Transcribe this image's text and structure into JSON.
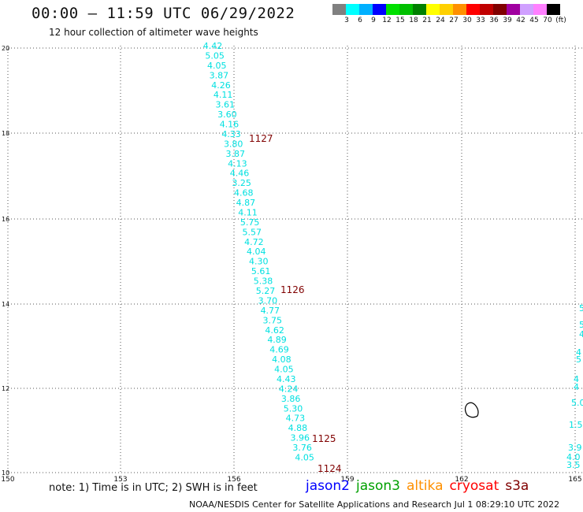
{
  "header": {
    "title": "00:00 – 11:59 UTC 06/29/2022",
    "subtitle": "12 hour collection of altimeter wave heights"
  },
  "colorbar": {
    "colors": [
      "#808080",
      "#00ffff",
      "#00b0ff",
      "#0000ff",
      "#00e000",
      "#00c000",
      "#008000",
      "#ffff00",
      "#ffd000",
      "#ff9000",
      "#ff0000",
      "#c00000",
      "#800000",
      "#a000a0",
      "#d0a0ff",
      "#ff80ff",
      "#000000"
    ],
    "labels": [
      "3",
      "6",
      "9",
      "12",
      "15",
      "18",
      "21",
      "24",
      "27",
      "30",
      "33",
      "36",
      "39",
      "42",
      "45",
      "70",
      "(ft)"
    ]
  },
  "axes": {
    "lat_labels": [
      "20",
      "18",
      "16",
      "14",
      "12",
      "10"
    ],
    "lon_labels": [
      "150",
      "153",
      "156",
      "159",
      "162",
      "165"
    ]
  },
  "track": {
    "color": "#00e0e0",
    "values": [
      "4.42",
      "5.05",
      "4.05",
      "3.87",
      "4.26",
      "4.11",
      "3.61",
      "3.60",
      "4.16",
      "4.33",
      "3.80",
      "3.87",
      "4.13",
      "4.46",
      "3.25",
      "4.68",
      "4.87",
      "4.11",
      "5.75",
      "5.57",
      "4.72",
      "4.04",
      "4.30",
      "5.61",
      "5.38",
      "5.27",
      "3.70",
      "4.77",
      "3.75",
      "4.62",
      "4.89",
      "4.69",
      "4.08",
      "4.05",
      "4.43",
      "4.24",
      "3.86",
      "5.30",
      "4.73",
      "4.88",
      "3.96",
      "3.76",
      "4.05"
    ]
  },
  "time_labels": [
    "1127",
    "1126",
    "1125",
    "1124"
  ],
  "edge_values": [
    "5",
    "5",
    "4",
    "4",
    "5",
    "4",
    "4",
    "5.0",
    "1.5",
    "3.9",
    "4.0",
    "3.5"
  ],
  "note": "note: 1) Time is in UTC; 2) SWH is in feet",
  "satellites": [
    {
      "name": "jason2",
      "color": "#0000ff"
    },
    {
      "name": "jason3",
      "color": "#00a000"
    },
    {
      "name": "altika",
      "color": "#ff9000"
    },
    {
      "name": "cryosat",
      "color": "#ff0000"
    },
    {
      "name": "s3a",
      "color": "#800000"
    }
  ],
  "footer": "NOAA/NESDIS Center for Satellite Applications and Research    Jul  1 08:29:10 UTC 2022"
}
